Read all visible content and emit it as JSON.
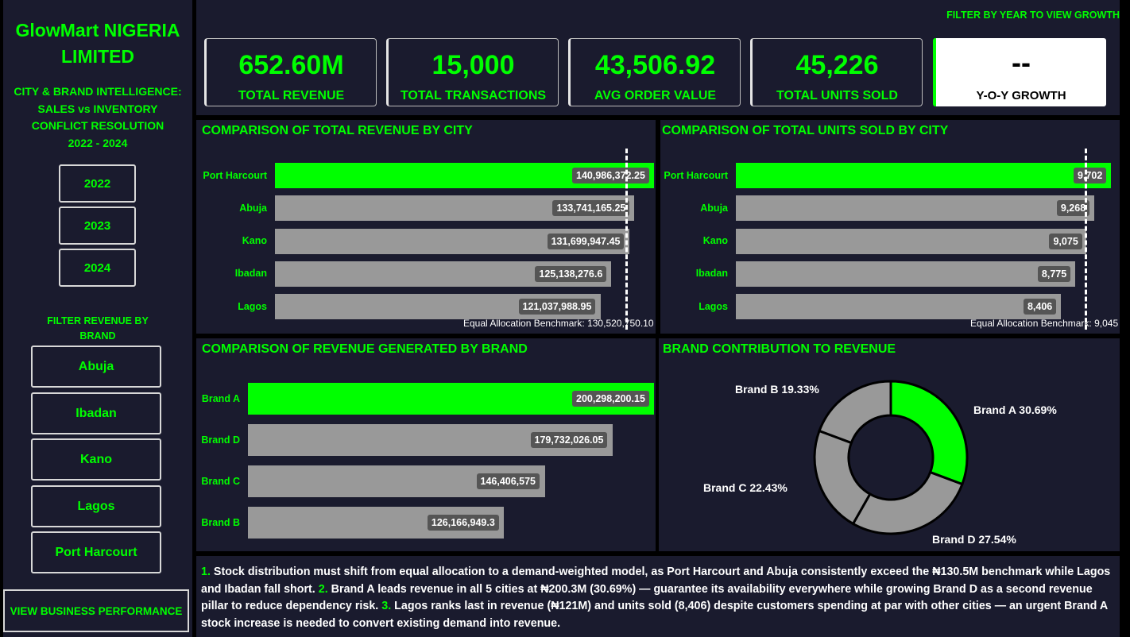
{
  "sidebar": {
    "company_line1": "GlowMart NIGERIA",
    "company_line2": "LIMITED",
    "subtitle_line1": "CITY & BRAND INTELLIGENCE:",
    "subtitle_line2": "SALES vs INVENTORY",
    "subtitle_line3": "CONFLICT RESOLUTION",
    "subtitle_line4": "2022 - 2024",
    "years": [
      "2022",
      "2023",
      "2024"
    ],
    "brand_filter_line1": "FILTER REVENUE BY",
    "brand_filter_line2": "BRAND",
    "cities": [
      "Abuja",
      "Ibadan",
      "Kano",
      "Lagos",
      "Port Harcourt"
    ],
    "view_business_label": "VIEW BUSINESS PERFORMANCE"
  },
  "header": {
    "filter_hint": "FILTER BY YEAR TO VIEW GROWTH",
    "kpis": [
      {
        "value": "652.60M",
        "label": "TOTAL REVENUE"
      },
      {
        "value": "15,000",
        "label": "TOTAL TRANSACTIONS"
      },
      {
        "value": "43,506.92",
        "label": "AVG ORDER VALUE"
      },
      {
        "value": "45,226",
        "label": "TOTAL UNITS SOLD"
      }
    ],
    "yoy": {
      "value": "--",
      "label": "Y-O-Y GROWTH"
    }
  },
  "colors": {
    "accent": "#00ff00",
    "bar": "#999999",
    "panel": "#1a1b2e"
  },
  "chart_data": [
    {
      "type": "bar",
      "title": "COMPARISON OF TOTAL REVENUE BY CITY",
      "categories": [
        "Port Harcourt",
        "Abuja",
        "Kano",
        "Ibadan",
        "Lagos"
      ],
      "values": [
        140986372.25,
        133741165.25,
        131699947.45,
        125138276.6,
        121037988.95
      ],
      "value_labels": [
        "140,986,372.25",
        "133,741,165.25",
        "131,699,947.45",
        "125,138,276.6",
        "121,037,988.95"
      ],
      "benchmark": 130520750.1,
      "benchmark_label": "Equal Allocation Benchmark: 130,520,750.10",
      "xlim": [
        0,
        140986372.25
      ],
      "highlight": "Port Harcourt"
    },
    {
      "type": "bar",
      "title": "COMPARISON OF TOTAL UNITS SOLD BY CITY",
      "categories": [
        "Port Harcourt",
        "Abuja",
        "Kano",
        "Ibadan",
        "Lagos"
      ],
      "values": [
        9702,
        9268,
        9075,
        8775,
        8406
      ],
      "value_labels": [
        "9,702",
        "9,268",
        "9,075",
        "8,775",
        "8,406"
      ],
      "benchmark": 9045,
      "benchmark_label": "Equal Allocation Benchmark: 9,045",
      "xlim": [
        0,
        9702
      ],
      "highlight": "Port Harcourt"
    },
    {
      "type": "bar",
      "title": "COMPARISON OF REVENUE GENERATED BY BRAND",
      "categories": [
        "Brand A",
        "Brand D",
        "Brand C",
        "Brand B"
      ],
      "values": [
        200298200.15,
        179732026.05,
        146406575,
        126166949.3
      ],
      "value_labels": [
        "200,298,200.15",
        "179,732,026.05",
        "146,406,575",
        "126,166,949.3"
      ],
      "xlim": [
        0,
        200298200.15
      ],
      "highlight": "Brand A"
    },
    {
      "type": "pie",
      "title": "BRAND CONTRIBUTION TO REVENUE",
      "categories": [
        "Brand A",
        "Brand D",
        "Brand C",
        "Brand B"
      ],
      "values": [
        30.69,
        27.54,
        22.43,
        19.33
      ],
      "labels": [
        "Brand A 30.69%",
        "Brand D 27.54%",
        "Brand C 22.43%",
        "Brand B 19.33%"
      ],
      "highlight": "Brand A"
    }
  ],
  "insights": {
    "n1": "1.",
    "t1": " Stock distribution must shift from equal allocation to a demand-weighted model, as Port Harcourt and Abuja consistently exceed the ₦130.5M benchmark while Lagos and Ibadan fall short. ",
    "n2": "2.",
    "t2": " Brand A leads revenue in all 5 cities at ₦200.3M (30.69%) — guarantee its availability everywhere while growing Brand D as a second revenue pillar to reduce dependency risk. ",
    "n3": "3.",
    "t3": " Lagos ranks last in revenue (₦121M) and units sold (8,406) despite customers spending at par with other cities — an urgent Brand A stock increase is needed to convert existing demand into revenue."
  }
}
